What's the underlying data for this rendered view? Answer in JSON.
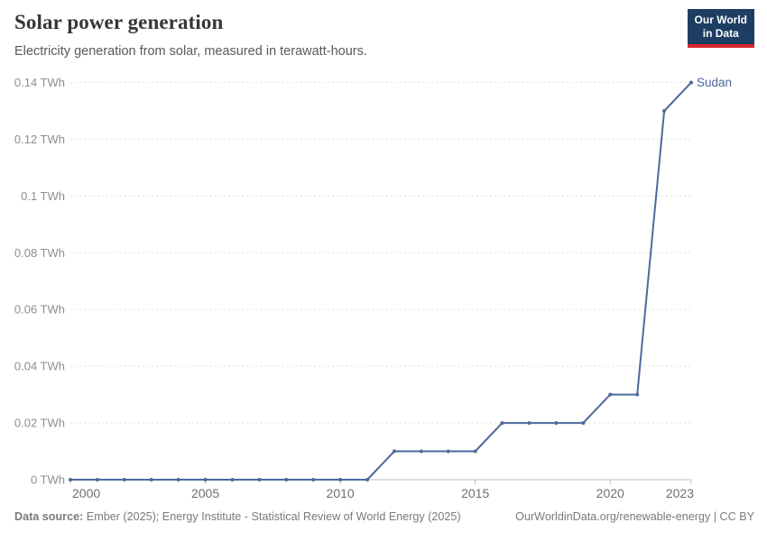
{
  "header": {
    "title": "Solar power generation",
    "subtitle": "Electricity generation from solar, measured in terawatt-hours.",
    "logo": {
      "line1": "Our World",
      "line2": "in Data",
      "bg_color": "#1d3d63",
      "accent_color": "#d7282c"
    }
  },
  "chart_data": {
    "type": "line",
    "title": "Solar power generation",
    "subtitle": "Electricity generation from solar, measured in terawatt-hours.",
    "unit": "TWh",
    "x": [
      2000,
      2001,
      2002,
      2003,
      2004,
      2005,
      2006,
      2007,
      2008,
      2009,
      2010,
      2011,
      2012,
      2013,
      2014,
      2015,
      2016,
      2017,
      2018,
      2019,
      2020,
      2021,
      2022,
      2023
    ],
    "series": [
      {
        "name": "Sudan",
        "values": [
          0,
          0,
          0,
          0,
          0,
          0,
          0,
          0,
          0,
          0,
          0,
          0,
          0.01,
          0.01,
          0.01,
          0.01,
          0.02,
          0.02,
          0.02,
          0.02,
          0.03,
          0.03,
          0.13,
          0.14
        ],
        "color": "#4c6a9c"
      }
    ],
    "xlim": [
      2000,
      2023
    ],
    "ylim": [
      0,
      0.14
    ],
    "xticks": [
      2000,
      2005,
      2010,
      2015,
      2020,
      2023
    ],
    "yticks": [
      0,
      0.02,
      0.04,
      0.06,
      0.08,
      0.1,
      0.12,
      0.14
    ],
    "ytick_labels": [
      "0 TWh",
      "0.02 TWh",
      "0.04 TWh",
      "0.06 TWh",
      "0.08 TWh",
      "0.1 TWh",
      "0.12 TWh",
      "0.14 TWh"
    ],
    "grid": "horizontal-dashed",
    "legend_position": "end-of-line-label",
    "colors": {
      "gridline": "#e0e0e0",
      "axis": "#bcbcbc",
      "ytick_label": "#8e8e8e",
      "xtick_label": "#6f6f6f"
    }
  },
  "footer": {
    "source_label": "Data source:",
    "source_text": "Ember (2025); Energy Institute - Statistical Review of World Energy (2025)",
    "license_text": "OurWorldinData.org/renewable-energy | CC BY"
  }
}
